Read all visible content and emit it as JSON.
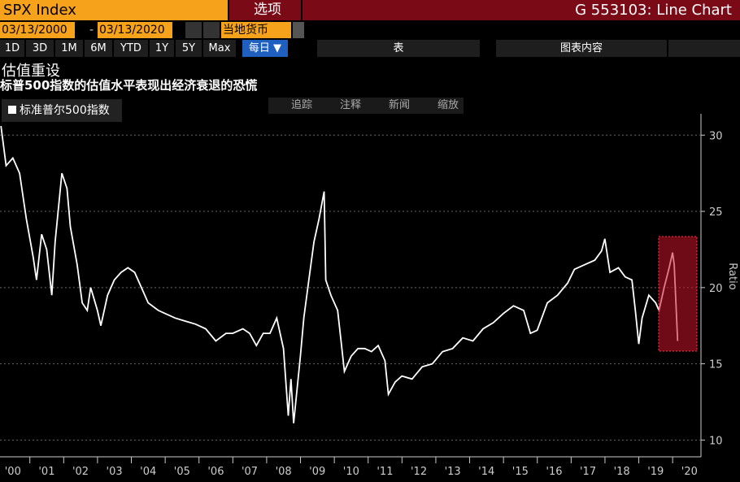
{
  "header": {
    "ticker": "SPX Index",
    "options": "选项",
    "function": "G 553103: Line Chart"
  },
  "controls": {
    "start_date": "03/13/2000",
    "dash": "-",
    "end_date": "03/13/2020",
    "currency": "当地货币",
    "periods": [
      "1D",
      "3D",
      "1M",
      "6M",
      "YTD",
      "1Y",
      "5Y",
      "Max"
    ],
    "frequency": "每日 ▼",
    "table": "表",
    "chart_contents": "图表内容"
  },
  "toolbar": [
    "追踪",
    "注释",
    "新闻",
    "缩放"
  ],
  "chart_data": {
    "type": "line",
    "title": "估值重设",
    "subtitle": "标普500指数的估值水平表现出经济衰退的恐慌",
    "y_label": "Ratio",
    "x": [
      2000.15,
      2000.3,
      2000.5,
      2000.7,
      2000.9,
      2001.1,
      2001.2,
      2001.35,
      2001.5,
      2001.65,
      2001.75,
      2001.95,
      2002.1,
      2002.2,
      2002.4,
      2002.55,
      2002.7,
      2002.8,
      2003.0,
      2003.1,
      2003.3,
      2003.5,
      2003.7,
      2003.9,
      2004.1,
      2004.3,
      2004.5,
      2004.8,
      2005.0,
      2005.3,
      2005.6,
      2005.9,
      2006.2,
      2006.5,
      2006.8,
      2007.0,
      2007.3,
      2007.5,
      2007.7,
      2007.9,
      2008.1,
      2008.3,
      2008.5,
      2008.64,
      2008.72,
      2008.8,
      2009.0,
      2009.1,
      2009.25,
      2009.4,
      2009.55,
      2009.7,
      2009.75,
      2009.9,
      2010.1,
      2010.2,
      2010.3,
      2010.5,
      2010.7,
      2010.9,
      2011.1,
      2011.3,
      2011.5,
      2011.6,
      2011.8,
      2012.0,
      2012.3,
      2012.6,
      2012.9,
      2013.2,
      2013.5,
      2013.8,
      2014.1,
      2014.4,
      2014.7,
      2015.0,
      2015.3,
      2015.6,
      2015.8,
      2016.0,
      2016.3,
      2016.6,
      2016.9,
      2017.1,
      2017.4,
      2017.7,
      2017.9,
      2018.0,
      2018.15,
      2018.4,
      2018.6,
      2018.8,
      2018.9,
      2019.0,
      2019.1,
      2019.3,
      2019.5,
      2019.6,
      2019.75,
      2019.9,
      2020.0,
      2020.05,
      2020.1,
      2020.15
    ],
    "series": [
      {
        "name": "标准普尔500指数",
        "color": "#ffffff",
        "values": [
          30.6,
          28,
          28.5,
          27.5,
          24.5,
          22,
          20.5,
          23.5,
          22.5,
          19.5,
          23,
          27.5,
          26.5,
          24,
          21.5,
          19,
          18.5,
          20,
          18.5,
          17.5,
          19.5,
          20.5,
          21,
          21.3,
          21,
          20,
          19,
          18.5,
          18.3,
          18,
          17.8,
          17.6,
          17.3,
          16.5,
          17,
          17,
          17.3,
          17,
          16.2,
          17,
          17,
          18,
          16,
          11.6,
          14,
          11.1,
          15.5,
          18,
          20.5,
          23,
          24.5,
          26.3,
          20.5,
          19.5,
          18.5,
          16.5,
          14.5,
          15.5,
          16,
          16,
          15.8,
          16.2,
          15.2,
          13,
          13.8,
          14.2,
          14,
          14.8,
          15,
          15.8,
          16,
          16.7,
          16.5,
          17.3,
          17.7,
          18.3,
          18.8,
          18.5,
          17,
          17.2,
          19,
          19.5,
          20.3,
          21.2,
          21.5,
          21.8,
          22.4,
          23.2,
          21,
          21.3,
          20.7,
          20.5,
          18.5,
          16.3,
          18,
          19.5,
          19,
          18.5,
          20,
          21.3,
          22.3,
          21.5,
          19,
          16.5
        ]
      }
    ],
    "xlim": [
      2000.12,
      2020.84
    ],
    "xticks": [
      {
        "value": 2000.5,
        "label": "'00"
      },
      {
        "value": 2001.5,
        "label": "'01"
      },
      {
        "value": 2002.5,
        "label": "'02"
      },
      {
        "value": 2003.5,
        "label": "'03"
      },
      {
        "value": 2004.5,
        "label": "'04"
      },
      {
        "value": 2005.5,
        "label": "'05"
      },
      {
        "value": 2006.5,
        "label": "'06"
      },
      {
        "value": 2007.5,
        "label": "'07"
      },
      {
        "value": 2008.5,
        "label": "'08"
      },
      {
        "value": 2009.5,
        "label": "'09"
      },
      {
        "value": 2010.5,
        "label": "'10"
      },
      {
        "value": 2011.5,
        "label": "'11"
      },
      {
        "value": 2012.5,
        "label": "'12"
      },
      {
        "value": 2013.5,
        "label": "'13"
      },
      {
        "value": 2014.5,
        "label": "'14"
      },
      {
        "value": 2015.5,
        "label": "'15"
      },
      {
        "value": 2016.5,
        "label": "'16"
      },
      {
        "value": 2017.5,
        "label": "'17"
      },
      {
        "value": 2018.5,
        "label": "'18"
      },
      {
        "value": 2019.5,
        "label": "'19"
      },
      {
        "value": 2020.5,
        "label": "'20"
      }
    ],
    "ylim": [
      8.9,
      31.4
    ],
    "yticks": [
      10,
      15,
      20,
      25,
      30
    ],
    "grid": true
  }
}
